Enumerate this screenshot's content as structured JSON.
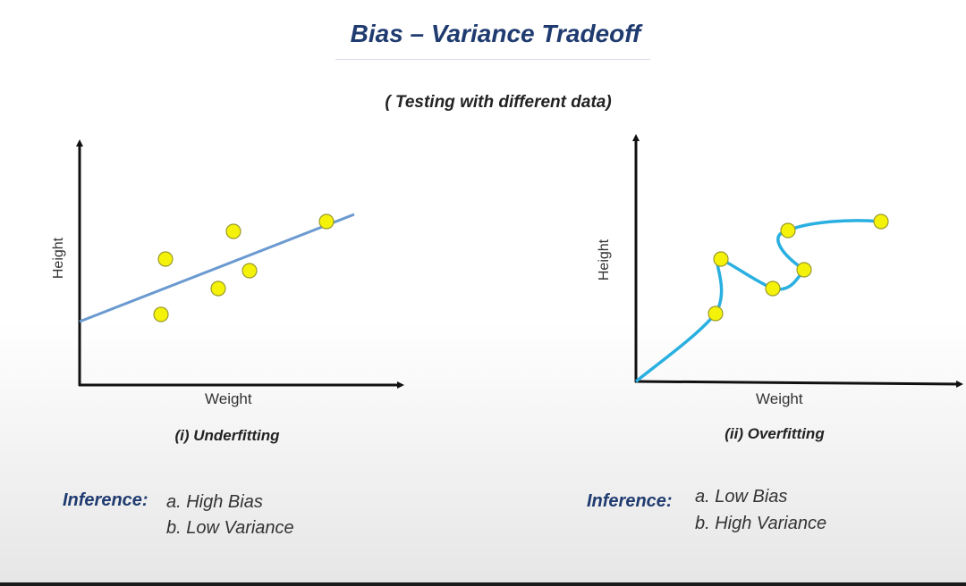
{
  "title": "Bias – Variance Tradeoff",
  "subtitle": "( Testing with different data)",
  "panels": [
    {
      "xlabel": "Weight",
      "ylabel": "Height",
      "caption": "(i) Underfitting",
      "inference_label": "Inference:",
      "inference_items": [
        "a.  High Bias",
        "b.  Low Variance"
      ]
    },
    {
      "xlabel": "Weight",
      "ylabel": "Height",
      "caption": "(ii) Overfitting",
      "inference_label": "Inference:",
      "inference_items": [
        "a.  Low Bias",
        "b.  High Variance"
      ]
    }
  ],
  "colors": {
    "title": "#1f3b70",
    "point_fill": "#f5f20a",
    "point_stroke": "#9a9a2a",
    "line_underfit": "#6b9ad0",
    "curve_overfit": "#2ab0e0",
    "axis": "#111111"
  }
}
